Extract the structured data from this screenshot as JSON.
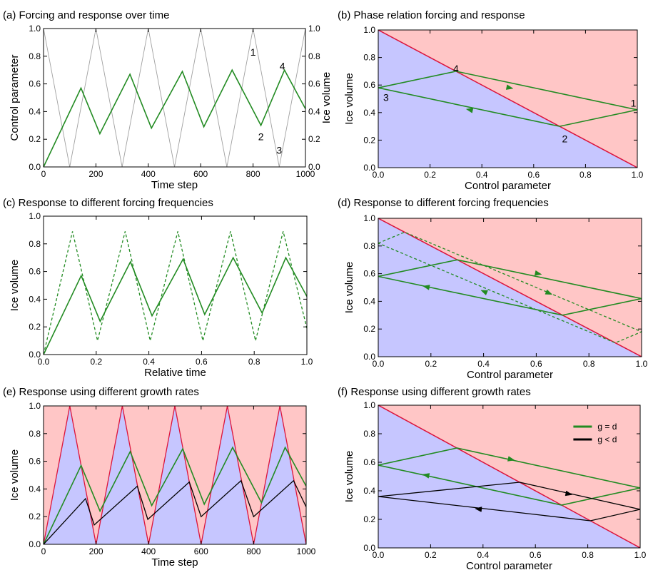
{
  "colors": {
    "green": "#228b22",
    "black": "#000000",
    "red_line": "#dc143c",
    "gray_line": "#a0a0a0",
    "red_fill": "#ffc6c6",
    "blue_fill": "#c6c6ff"
  },
  "chart_data": [
    {
      "id": "a",
      "type": "line",
      "title": "(a) Forcing and response over time",
      "xlabel": "Time step",
      "ylabel": "Control parameter",
      "ylabel_right": "Ice volume",
      "xlim": [
        0,
        1000
      ],
      "ylim": [
        0,
        1
      ],
      "ylim_right": [
        0,
        1
      ],
      "xticks": [
        "0",
        "200",
        "400",
        "600",
        "800",
        "1000"
      ],
      "yticks": [
        "0.0",
        "0.2",
        "0.4",
        "0.6",
        "0.8",
        "1.0"
      ],
      "yticks_right": [
        "0.0",
        "0.2",
        "0.4",
        "0.6",
        "0.8",
        "1.0"
      ],
      "series": [
        {
          "style": "forcing",
          "axis": "left",
          "x": [
            0,
            100,
            200,
            300,
            400,
            500,
            600,
            700,
            800,
            900,
            1000
          ],
          "y": [
            1,
            0,
            1,
            0,
            1,
            0,
            1,
            0,
            1,
            0,
            1
          ]
        },
        {
          "style": "green",
          "axis": "right",
          "x": [
            0,
            143,
            215,
            330,
            412,
            530,
            612,
            720,
            830,
            920,
            1000
          ],
          "y": [
            0,
            0.57,
            0.24,
            0.67,
            0.28,
            0.69,
            0.29,
            0.7,
            0.3,
            0.7,
            0.42
          ]
        }
      ],
      "annotations": [
        {
          "text": "1",
          "x": 800,
          "y": 0.83
        },
        {
          "text": "4",
          "x": 912,
          "y": 0.73
        },
        {
          "text": "2",
          "x": 830,
          "y": 0.22
        },
        {
          "text": "3",
          "x": 900,
          "y": 0.12
        }
      ]
    },
    {
      "id": "b",
      "type": "line",
      "title": "(b) Phase relation forcing and response",
      "xlabel": "Control parameter",
      "ylabel": "Ice volume",
      "xlim": [
        0,
        1
      ],
      "ylim": [
        0,
        1
      ],
      "xticks": [
        "0.0",
        "0.2",
        "0.4",
        "0.6",
        "0.8",
        "1.0"
      ],
      "yticks": [
        "0.0",
        "0.2",
        "0.4",
        "0.6",
        "0.8",
        "1.0"
      ],
      "regions": true,
      "series": [
        {
          "style": "green",
          "x": [
            0,
            0.3,
            1.0,
            0.7,
            0
          ],
          "y": [
            0.58,
            0.7,
            0.42,
            0.3,
            0.58
          ],
          "arrows": [
            {
              "at": [
                0.52,
                0.575
              ],
              "dir": [
                1,
                -0.4
              ]
            },
            {
              "at": [
                0.34,
                0.425
              ],
              "dir": [
                -1,
                0.4
              ]
            }
          ]
        }
      ],
      "annotations": [
        {
          "text": "4",
          "x": 0.3,
          "y": 0.72
        },
        {
          "text": "1",
          "x": 0.985,
          "y": 0.47
        },
        {
          "text": "3",
          "x": 0.03,
          "y": 0.51
        },
        {
          "text": "2",
          "x": 0.72,
          "y": 0.21
        }
      ]
    },
    {
      "id": "c",
      "type": "line",
      "title": "(c) Response to different forcing frequencies",
      "xlabel": "Relative time",
      "ylabel": "Ice volume",
      "xlim": [
        0,
        1
      ],
      "ylim": [
        0,
        1
      ],
      "xticks": [
        "0.0",
        "0.2",
        "0.4",
        "0.6",
        "0.8",
        "1.0"
      ],
      "yticks": [
        "0.0",
        "0.2",
        "0.4",
        "0.6",
        "0.8",
        "1.0"
      ],
      "series": [
        {
          "style": "green",
          "x": [
            0,
            0.143,
            0.215,
            0.33,
            0.412,
            0.53,
            0.612,
            0.72,
            0.83,
            0.92,
            1.0
          ],
          "y": [
            0,
            0.57,
            0.24,
            0.67,
            0.28,
            0.69,
            0.29,
            0.7,
            0.3,
            0.7,
            0.42
          ]
        },
        {
          "style": "green-dashed",
          "x": [
            0,
            0.11,
            0.205,
            0.31,
            0.405,
            0.51,
            0.605,
            0.71,
            0.805,
            0.91,
            1.0
          ],
          "y": [
            0,
            0.89,
            0.1,
            0.89,
            0.1,
            0.89,
            0.1,
            0.89,
            0.1,
            0.89,
            0.19
          ]
        }
      ]
    },
    {
      "id": "d",
      "type": "line",
      "title": "(d) Response to different forcing frequencies",
      "xlabel": "Control parameter",
      "ylabel": "Ice volume",
      "xlim": [
        0,
        1
      ],
      "ylim": [
        0,
        1
      ],
      "xticks": [
        "0.0",
        "0.2",
        "0.4",
        "0.6",
        "0.8",
        "1.0"
      ],
      "yticks": [
        "0.0",
        "0.2",
        "0.4",
        "0.6",
        "0.8",
        "1.0"
      ],
      "regions": true,
      "series": [
        {
          "style": "green",
          "x": [
            0,
            0.3,
            1.0,
            0.7,
            0
          ],
          "y": [
            0.58,
            0.7,
            0.42,
            0.3,
            0.58
          ],
          "arrows": [
            {
              "at": [
                0.62,
                0.595
              ],
              "dir": [
                1,
                -0.4
              ]
            },
            {
              "at": [
                0.17,
                0.51
              ],
              "dir": [
                -1,
                0.4
              ]
            }
          ]
        },
        {
          "style": "green-dashed",
          "x": [
            0,
            0.1,
            1.0,
            0.9,
            0
          ],
          "y": [
            0.82,
            0.9,
            0.18,
            0.1,
            0.82
          ],
          "arrows": [
            {
              "at": [
                0.66,
                0.45
              ],
              "dir": [
                1,
                -0.8
              ]
            },
            {
              "at": [
                0.39,
                0.48
              ],
              "dir": [
                -1,
                0.8
              ]
            }
          ]
        }
      ]
    },
    {
      "id": "e",
      "type": "line",
      "title": "(e) Response using different growth rates",
      "xlabel": "Time step",
      "ylabel": "Ice volume",
      "xlim": [
        0,
        1000
      ],
      "ylim": [
        0,
        1
      ],
      "xticks": [
        "0",
        "200",
        "400",
        "600",
        "800",
        "1000"
      ],
      "yticks": [
        "0.0",
        "0.2",
        "0.4",
        "0.6",
        "0.8",
        "1.0"
      ],
      "regions_time": true,
      "series": [
        {
          "style": "red",
          "x": [
            0,
            100,
            200,
            300,
            400,
            500,
            600,
            700,
            800,
            900,
            1000
          ],
          "y": [
            0,
            1,
            0,
            1,
            0,
            1,
            0,
            1,
            0,
            1,
            0
          ]
        },
        {
          "style": "green",
          "x": [
            0,
            143,
            215,
            330,
            412,
            530,
            612,
            720,
            830,
            920,
            1000
          ],
          "y": [
            0,
            0.57,
            0.24,
            0.67,
            0.28,
            0.69,
            0.29,
            0.7,
            0.3,
            0.7,
            0.42
          ]
        },
        {
          "style": "black",
          "x": [
            0,
            160,
            193,
            357,
            397,
            555,
            600,
            752,
            800,
            952,
            1000
          ],
          "y": [
            0,
            0.33,
            0.14,
            0.42,
            0.18,
            0.45,
            0.2,
            0.46,
            0.2,
            0.46,
            0.27
          ]
        }
      ]
    },
    {
      "id": "f",
      "type": "line",
      "title": "(f) Response using different growth rates",
      "xlabel": "Control parameter",
      "ylabel": "Ice volume",
      "xlim": [
        0,
        1
      ],
      "ylim": [
        0,
        1
      ],
      "xticks": [
        "0.0",
        "0.2",
        "0.4",
        "0.6",
        "0.8",
        "1.0"
      ],
      "yticks": [
        "0.0",
        "0.2",
        "0.4",
        "0.6",
        "0.8",
        "1.0"
      ],
      "regions_light": true,
      "legend": [
        {
          "label": "g = d",
          "style": "green"
        },
        {
          "label": "g < d",
          "style": "black"
        }
      ],
      "series": [
        {
          "style": "green",
          "x": [
            0,
            0.3,
            1.0,
            0.7,
            0
          ],
          "y": [
            0.58,
            0.7,
            0.42,
            0.3,
            0.58
          ],
          "arrows": [
            {
              "at": [
                0.52,
                0.615
              ],
              "dir": [
                1,
                -0.4
              ]
            },
            {
              "at": [
                0.17,
                0.515
              ],
              "dir": [
                -1,
                0.4
              ]
            }
          ]
        },
        {
          "style": "black",
          "x": [
            0,
            0.54,
            1.0,
            0.81,
            0
          ],
          "y": [
            0.36,
            0.46,
            0.27,
            0.19,
            0.36
          ],
          "arrows": [
            {
              "at": [
                0.74,
                0.373
              ],
              "dir": [
                1,
                -0.4
              ]
            },
            {
              "at": [
                0.37,
                0.275
              ],
              "dir": [
                -1,
                0.2
              ]
            }
          ]
        }
      ]
    }
  ]
}
